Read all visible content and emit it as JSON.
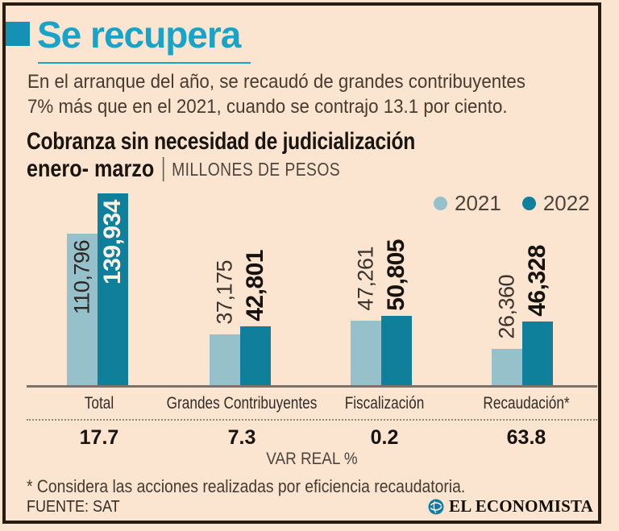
{
  "header": {
    "title": "Se recupera",
    "intro_line1": "En el arranque del año, se recaudó de grandes contribuyentes",
    "intro_line2": "7% más que en el 2021, cuando se contrajo 13.1 por ciento."
  },
  "chart_data": {
    "type": "bar",
    "title": "Cobranza sin necesidad de judicialización",
    "period_label": "enero- marzo",
    "unit_label": "MILLONES DE PESOS",
    "legend_position": "top-right",
    "grid": false,
    "categories": [
      "Total",
      "Grandes Contribuyentes",
      "Fiscalización",
      "Recaudación*"
    ],
    "series": [
      {
        "name": "2021",
        "color": "#96c0ca",
        "values": [
          110796,
          37175,
          47261,
          26360
        ],
        "display_labels": [
          "110,796",
          "37,175",
          "47,261",
          "26,360"
        ]
      },
      {
        "name": "2022",
        "color": "#0f7f9b",
        "values": [
          139934,
          42801,
          50805,
          46328
        ],
        "display_labels": [
          "139,934",
          "42,801",
          "50,805",
          "46,328"
        ]
      }
    ],
    "ylim": [
      0,
      145000
    ],
    "var_real": {
      "label": "VAR REAL %",
      "values": [
        "17.7",
        "7.3",
        "0.2",
        "63.8"
      ]
    }
  },
  "footer": {
    "footnote": "* Considera las acciones realizadas por eficiencia recaudatoria.",
    "source": "FUENTE: SAT",
    "brand": "EL ECONOMISTA"
  },
  "colors": {
    "accent_title": "#18a4c8",
    "bar_2021": "#96c0ca",
    "bar_2022": "#0f7f9b",
    "background": "#fbe5d1",
    "frame": "#2a1b10"
  }
}
